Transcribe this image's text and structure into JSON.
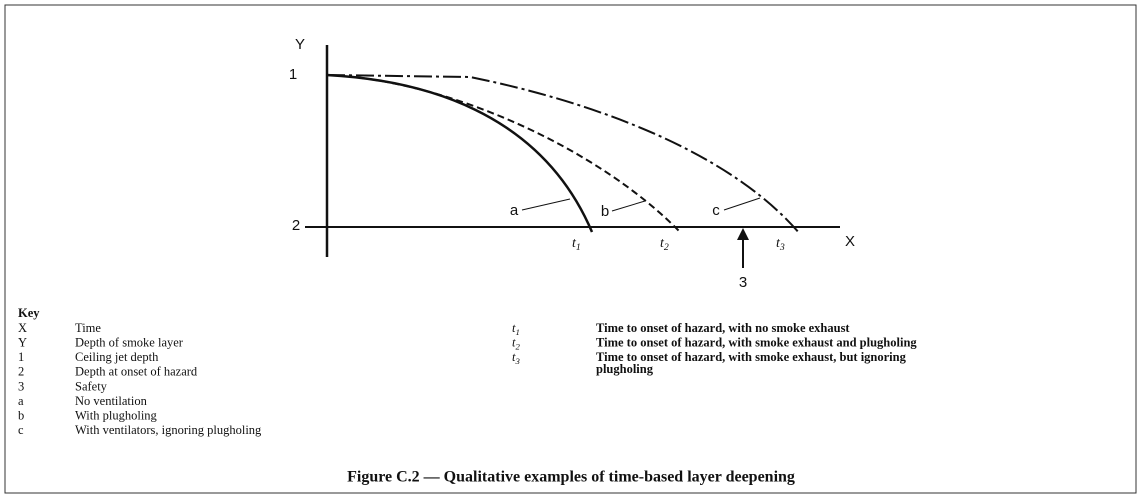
{
  "figure": {
    "axis_y": "Y",
    "axis_x": "X",
    "level_1": "1",
    "level_2": "2",
    "marker_3": "3",
    "curves": [
      {
        "label": "a"
      },
      {
        "label": "b"
      },
      {
        "label": "c"
      }
    ],
    "times": [
      {
        "symbol": "t",
        "subscript": "1"
      },
      {
        "symbol": "t",
        "subscript": "2"
      },
      {
        "symbol": "t",
        "subscript": "3"
      }
    ]
  },
  "key": {
    "title": "Key",
    "left": [
      [
        "X",
        "Time"
      ],
      [
        "Y",
        "Depth of smoke layer"
      ],
      [
        "1",
        "Ceiling jet depth"
      ],
      [
        "2",
        "Depth at onset of hazard"
      ],
      [
        "3",
        "Safety"
      ],
      [
        "a",
        "No ventilation"
      ],
      [
        "b",
        "With plugholing"
      ],
      [
        "c",
        "With ventilators, ignoring plugholing"
      ]
    ],
    "right": [
      {
        "symbol": "t",
        "subscript": "1",
        "text": "Time to onset of hazard, with no smoke exhaust"
      },
      {
        "symbol": "t",
        "subscript": "2",
        "text": "Time to onset of hazard, with smoke exhaust and plugholing"
      },
      {
        "symbol": "t",
        "subscript": "3",
        "text": [
          "Time to onset of hazard, with smoke exhaust, but ignoring",
          "plugholing"
        ]
      }
    ]
  },
  "caption": "Figure C.2 — Qualitative examples of time-based layer deepening"
}
